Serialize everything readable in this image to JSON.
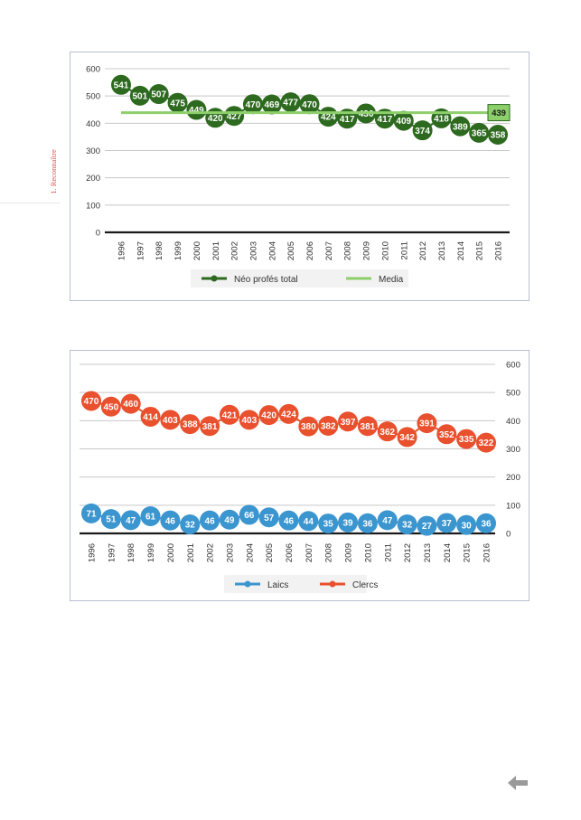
{
  "page": {
    "side_label": "1. Reconnaître",
    "back_arrow_icon": "arrow-left-icon"
  },
  "chart_data": [
    {
      "type": "line",
      "categories": [
        "1996",
        "1997",
        "1998",
        "1999",
        "2000",
        "2001",
        "2002",
        "2003",
        "2004",
        "2005",
        "2006",
        "2007",
        "2008",
        "2009",
        "2010",
        "2011",
        "2012",
        "2013",
        "2014",
        "2015",
        "2016"
      ],
      "series": [
        {
          "name": "Néo profés total",
          "color": "#2d6a1f",
          "values": [
            541,
            501,
            507,
            475,
            449,
            420,
            427,
            470,
            469,
            477,
            470,
            424,
            417,
            436,
            417,
            409,
            374,
            418,
            389,
            365,
            358
          ]
        },
        {
          "name": "Media",
          "color": "#8dcf6b",
          "values": [
            439,
            439,
            439,
            439,
            439,
            439,
            439,
            439,
            439,
            439,
            439,
            439,
            439,
            439,
            439,
            439,
            439,
            439,
            439,
            439,
            439
          ]
        }
      ],
      "media_label": "439",
      "yaxis_position": "left",
      "ylim": [
        0,
        600
      ],
      "yticks": [
        0,
        100,
        200,
        300,
        400,
        500,
        600
      ],
      "grid": true,
      "legend": "bottom"
    },
    {
      "type": "line",
      "categories": [
        "1996",
        "1997",
        "1998",
        "1999",
        "2000",
        "2001",
        "2002",
        "2003",
        "2004",
        "2005",
        "2006",
        "2007",
        "2008",
        "2009",
        "2010",
        "2011",
        "2012",
        "2013",
        "2014",
        "2015",
        "2016"
      ],
      "series": [
        {
          "name": "Laics",
          "color": "#3b95cf",
          "values": [
            71,
            51,
            47,
            61,
            46,
            32,
            46,
            49,
            66,
            57,
            46,
            44,
            35,
            39,
            36,
            47,
            32,
            27,
            37,
            30,
            36
          ]
        },
        {
          "name": "Clercs",
          "color": "#e9502d",
          "values": [
            470,
            450,
            460,
            414,
            403,
            388,
            381,
            421,
            403,
            420,
            424,
            380,
            382,
            397,
            381,
            362,
            342,
            391,
            352,
            335,
            322
          ]
        }
      ],
      "yaxis_position": "right",
      "ylim": [
        0,
        600
      ],
      "yticks": [
        0,
        100,
        200,
        300,
        400,
        500,
        600
      ],
      "grid": true,
      "legend": "bottom"
    }
  ]
}
